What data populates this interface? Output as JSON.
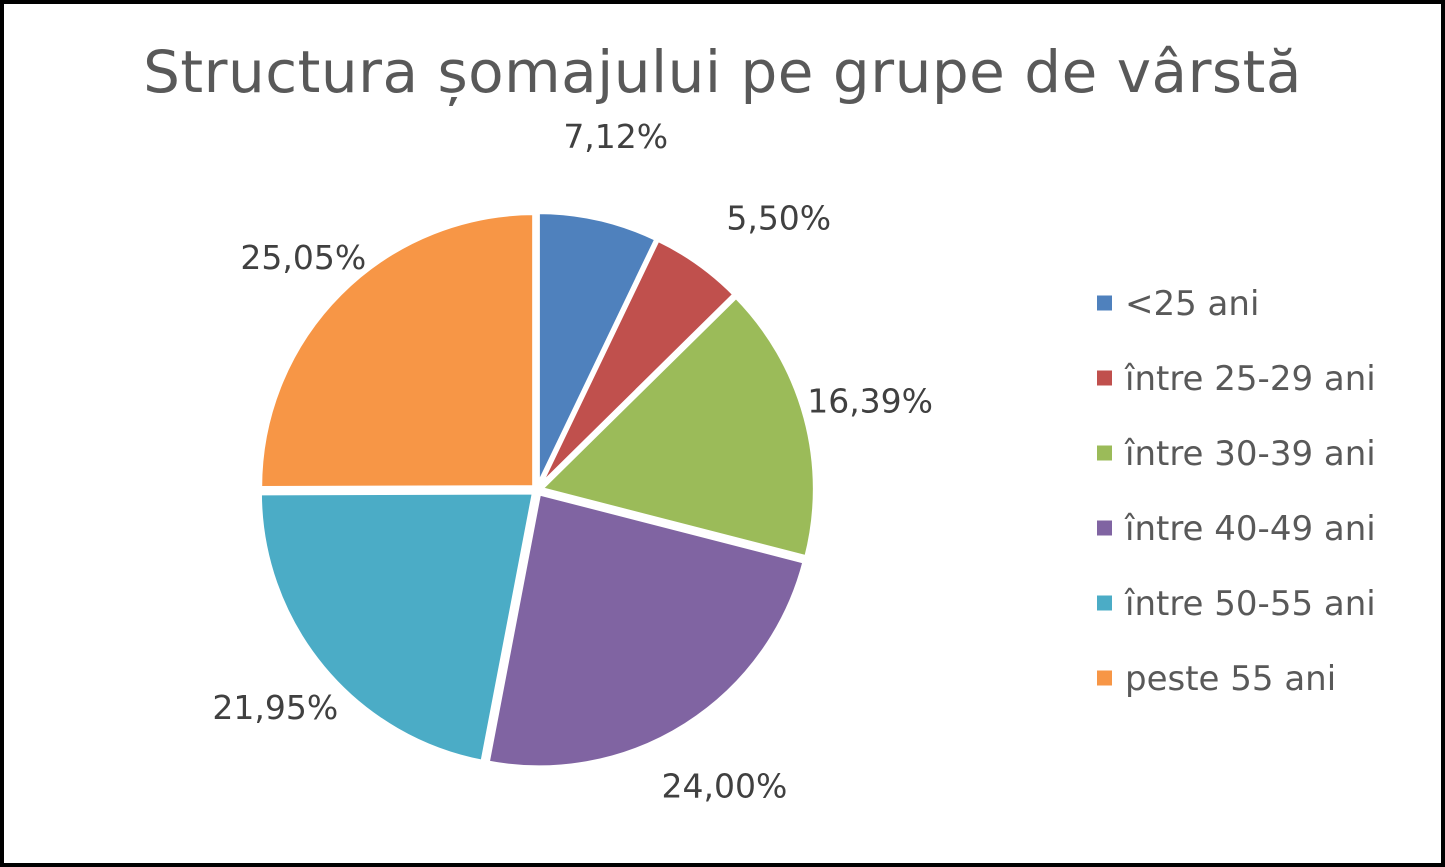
{
  "chart_data": {
    "type": "pie",
    "title": "Structura șomajului pe grupe de vârstă",
    "categories": [
      "<25 ani",
      "între 25-29 ani",
      "între 30-39 ani",
      "între 40-49 ani",
      "între 50-55 ani",
      "peste 55 ani"
    ],
    "values": [
      7.12,
      5.5,
      16.39,
      24.0,
      21.95,
      25.05
    ],
    "value_labels": [
      "7,12%",
      "5,50%",
      "16,39%",
      "24,00%",
      "21,95%",
      "25,05%"
    ],
    "colors": [
      "#4F81BD",
      "#C0504D",
      "#9BBB59",
      "#8064A2",
      "#4BACC6",
      "#F79646"
    ],
    "legend_position": "right",
    "start_angle": "top, clockwise"
  }
}
